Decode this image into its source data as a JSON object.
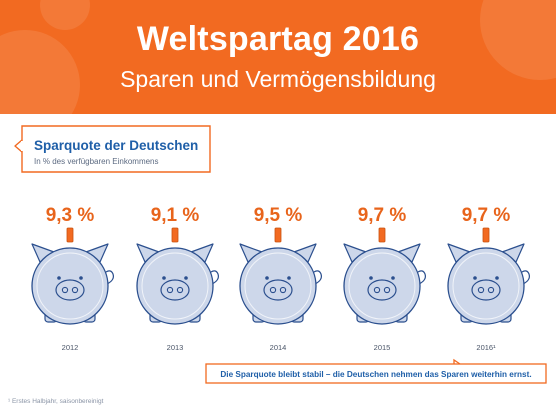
{
  "header": {
    "title": "Weltspartag 2016",
    "subtitle": "Sparen und Vermögensbildung"
  },
  "chart_data": {
    "type": "bar",
    "title": "Sparquote der Deutschen",
    "subtitle": "In % des verfügbaren Einkommens",
    "categories": [
      "2012",
      "2013",
      "2014",
      "2015",
      "2016¹"
    ],
    "values": [
      9.3,
      9.1,
      9.5,
      9.7,
      9.7
    ],
    "value_labels": [
      "9,3 %",
      "9,1 %",
      "9,5 %",
      "9,7 %",
      "9,7 %"
    ],
    "grid": false,
    "legend": "none",
    "annotation": "Die Sparquote bleibt stabil – die Deutschen nehmen das Sparen weiterhin ernst."
  },
  "footnote": "¹ Erstes Halbjahr, saisonbereinigt",
  "colors": {
    "header": "#f26a21",
    "value_text": "#e8641b",
    "title_text": "#1f5fa8",
    "pig_fill": "#cdd7ea",
    "pig_stroke": "#2b4f8e",
    "accent": "#f26a21"
  }
}
